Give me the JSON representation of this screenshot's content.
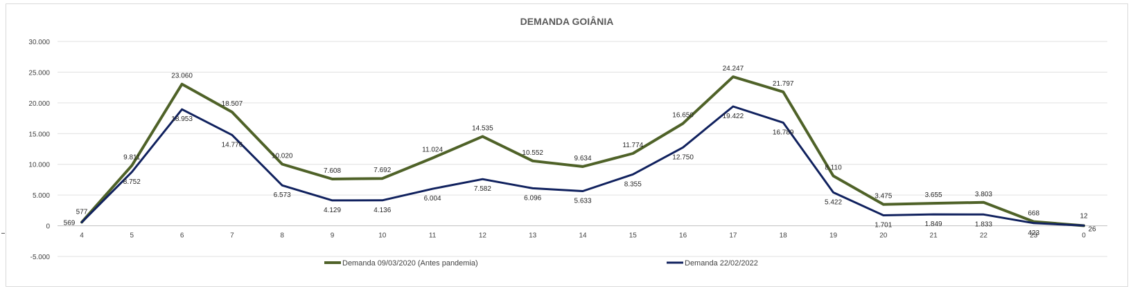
{
  "chart_data": {
    "type": "line",
    "title": "DEMANDA GOIÂNIA",
    "xlabel": "",
    "ylabel": "",
    "categories": [
      "4",
      "5",
      "6",
      "7",
      "8",
      "9",
      "10",
      "11",
      "12",
      "13",
      "14",
      "15",
      "16",
      "17",
      "18",
      "19",
      "20",
      "21",
      "22",
      "23",
      "0"
    ],
    "ylim": [
      -5000,
      30000
    ],
    "yticks": [
      -5000,
      0,
      5000,
      10000,
      15000,
      20000,
      25000,
      30000
    ],
    "ytick_labels": [
      "-5.000",
      "0",
      "5.000",
      "10.000",
      "15.000",
      "20.000",
      "25.000",
      "30.000"
    ],
    "grid": true,
    "legend_position": "bottom",
    "series": [
      {
        "name": "Demanda 09/03/2020 (Antes pandemia)",
        "color": "#4f6228",
        "values": [
          577,
          9811,
          23060,
          18507,
          10020,
          7608,
          7692,
          11024,
          14535,
          10552,
          9634,
          11774,
          16650,
          24247,
          21797,
          8110,
          3475,
          3655,
          3803,
          668,
          12
        ],
        "labels": [
          "577",
          "9.811",
          "23.060",
          "18.507",
          "10.020",
          "7.608",
          "7.692",
          "11.024",
          "14.535",
          "10.552",
          "9.634",
          "11.774",
          "16.650",
          "24.247",
          "21.797",
          "8.110",
          "3.475",
          "3.655",
          "3.803",
          "668",
          "12"
        ]
      },
      {
        "name": "Demanda 22/02/2022",
        "color": "#10215e",
        "values": [
          569,
          8752,
          18953,
          14776,
          6573,
          4129,
          4136,
          6004,
          7582,
          6096,
          5633,
          8355,
          12750,
          19422,
          16789,
          5422,
          1701,
          1849,
          1833,
          423,
          26
        ],
        "labels": [
          "569",
          "8.752",
          "18.953",
          "14.776",
          "6.573",
          "4.129",
          "4.136",
          "6.004",
          "7.582",
          "6.096",
          "5.633",
          "8.355",
          "12.750",
          "19.422",
          "16.789",
          "5.422",
          "1.701",
          "1.849",
          "1.833",
          "423",
          "26"
        ]
      }
    ]
  }
}
